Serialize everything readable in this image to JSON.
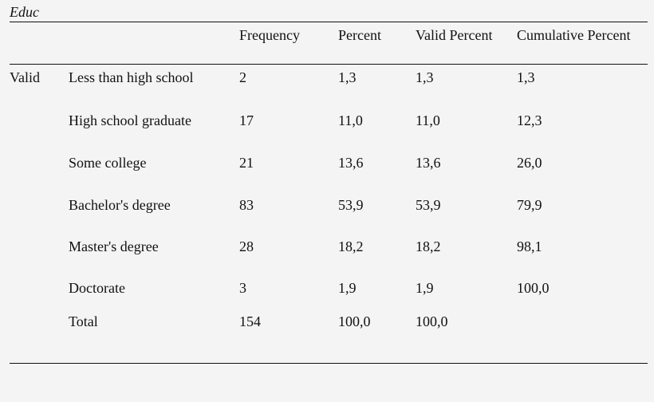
{
  "table": {
    "title": "Educ",
    "headers": {
      "frequency": "Frequency",
      "percent": "Percent",
      "valid_percent": "Valid Percent",
      "cumulative_percent": "Cumulative Percent"
    },
    "group_label": "Valid",
    "rows": [
      {
        "label": "Less than high school",
        "frequency": "2",
        "percent": "1,3",
        "valid_percent": "1,3",
        "cumulative_percent": "1,3"
      },
      {
        "label": "High school graduate",
        "frequency": "17",
        "percent": "11,0",
        "valid_percent": "11,0",
        "cumulative_percent": "12,3"
      },
      {
        "label": "Some college",
        "frequency": "21",
        "percent": "13,6",
        "valid_percent": "13,6",
        "cumulative_percent": "26,0"
      },
      {
        "label": "Bachelor's degree",
        "frequency": "83",
        "percent": "53,9",
        "valid_percent": "53,9",
        "cumulative_percent": "79,9"
      },
      {
        "label": "Master's degree",
        "frequency": "28",
        "percent": "18,2",
        "valid_percent": "18,2",
        "cumulative_percent": "98,1"
      },
      {
        "label": "Doctorate",
        "frequency": "3",
        "percent": "1,9",
        "valid_percent": "1,9",
        "cumulative_percent": "100,0"
      },
      {
        "label": "Total",
        "frequency": "154",
        "percent": "100,0",
        "valid_percent": "100,0",
        "cumulative_percent": ""
      }
    ]
  }
}
